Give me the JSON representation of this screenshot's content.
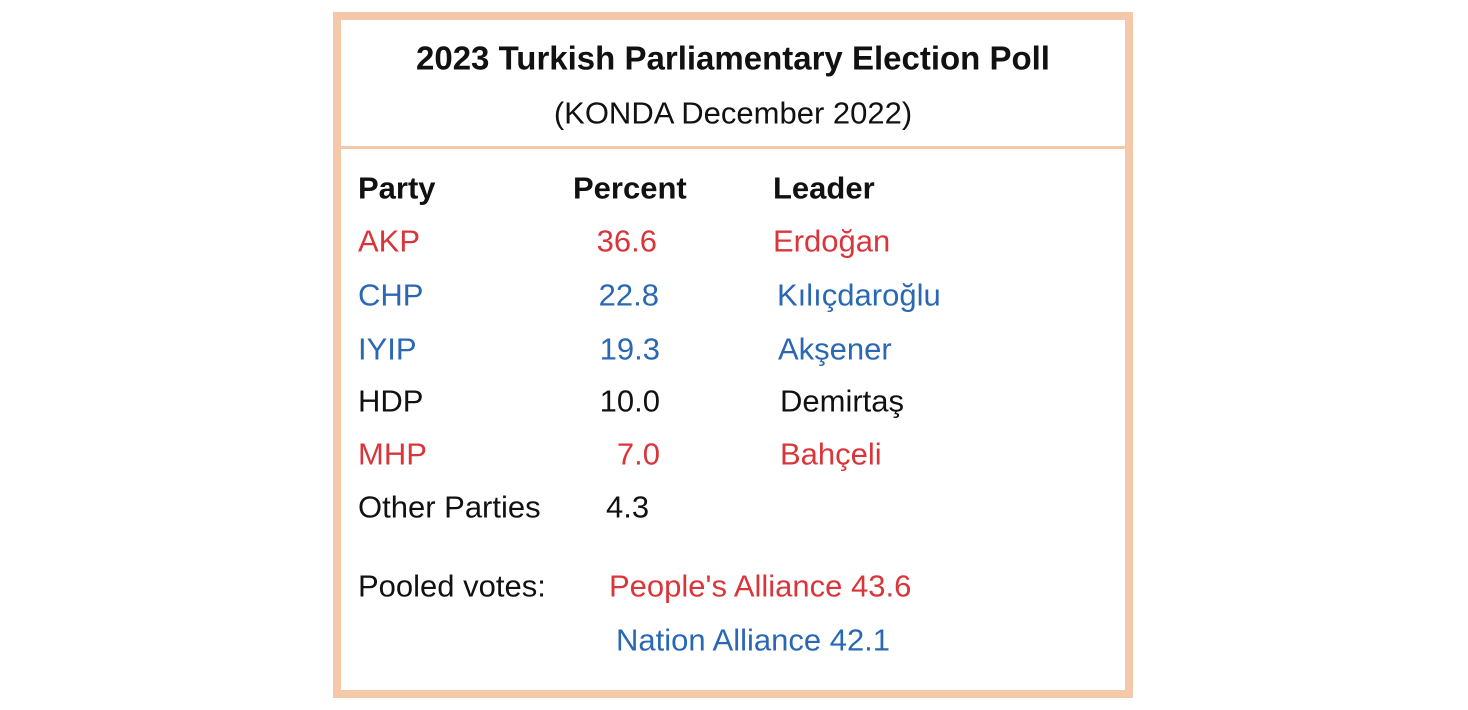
{
  "header": {
    "title": "2023 Turkish Parliamentary Election Poll",
    "subtitle": "(KONDA December 2022)"
  },
  "table": {
    "columns": [
      "Party",
      "Percent",
      "Leader"
    ],
    "rows": [
      [
        "AKP",
        "36.6",
        "Erdoğan"
      ],
      [
        "CHP",
        "22.8",
        "Kılıçdaroğlu"
      ],
      [
        "IYIP",
        "19.3",
        "Akşener"
      ],
      [
        "HDP",
        "10.0",
        "Demirtaş"
      ],
      [
        "MHP",
        "7.0",
        "Bahçeli"
      ],
      [
        "Other Parties",
        "4.3"
      ]
    ]
  },
  "pooled": {
    "label": "Pooled votes:",
    "alliances": [
      [
        "People's Alliance",
        "43.6"
      ],
      [
        "Nation Alliance",
        "42.1"
      ]
    ]
  }
}
